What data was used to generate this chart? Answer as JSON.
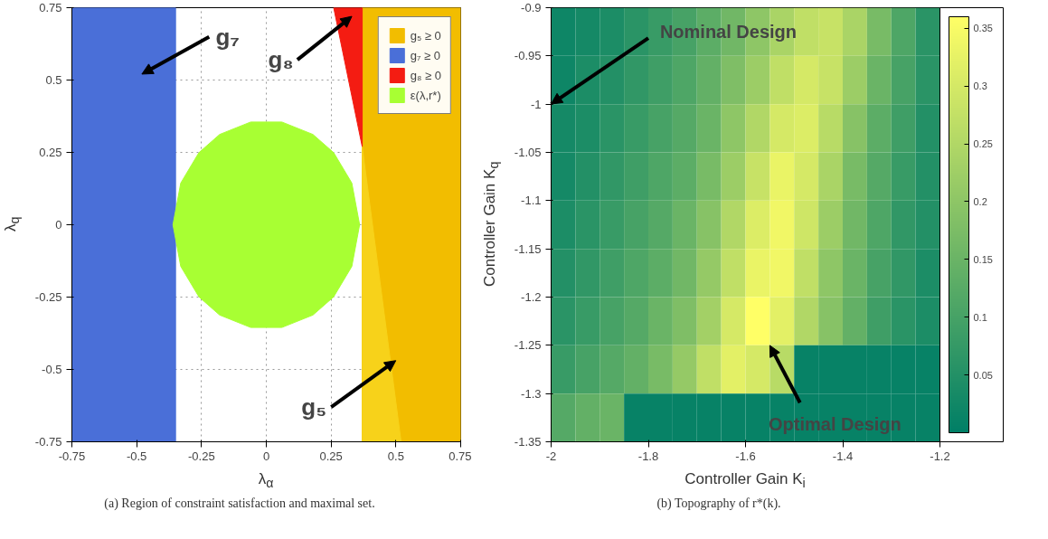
{
  "chart_data": [
    {
      "type": "area",
      "xlabel": "λ$_{α}$",
      "ylabel": "λ$_{q}$",
      "xlim": [
        -0.75,
        0.75
      ],
      "ylim": [
        -0.75,
        0.75
      ],
      "xticks": [
        -0.75,
        -0.5,
        -0.25,
        0,
        0.25,
        0.5,
        0.75
      ],
      "yticks": [
        -0.75,
        -0.5,
        -0.25,
        0,
        0.25,
        0.5,
        0.75
      ],
      "grid": true,
      "legend": "top right",
      "series": [
        {
          "name": "g₅ ≥ 0",
          "color": "#f2bd00",
          "x": [
            0.37,
            0.75,
            0.75,
            0.37
          ],
          "values": [
            -0.75,
            -0.75,
            0.75,
            0.75
          ]
        },
        {
          "color": "#f7d21a",
          "x": [
            0.37,
            0.37,
            0.52
          ],
          "values": [
            0.27,
            -0.75,
            -0.75
          ]
        },
        {
          "name": "g₇ ≥ 0",
          "color": "#4a6fd8",
          "x": [
            -0.75,
            -0.35,
            -0.35,
            -0.75
          ],
          "values": [
            -0.75,
            -0.75,
            0.75,
            0.75
          ]
        },
        {
          "name": "g₈ ≥ 0",
          "color": "#f41c12",
          "x": [
            0.26,
            0.37,
            0.37
          ],
          "values": [
            0.75,
            0.75,
            0.27
          ]
        },
        {
          "name": "ε(λ,r*)",
          "color": "#a8ff33",
          "x": [
            -0.36,
            -0.33,
            -0.26,
            -0.18,
            -0.06,
            0.06,
            0.18,
            0.26,
            0.33,
            0.36,
            0.33,
            0.26,
            0.18,
            0.06,
            -0.06,
            -0.18,
            -0.26,
            -0.33
          ],
          "values": [
            0,
            0.144,
            0.249,
            0.312,
            0.355,
            0.355,
            0.312,
            0.249,
            0.144,
            0,
            -0.144,
            -0.249,
            -0.312,
            -0.355,
            -0.355,
            -0.312,
            -0.249,
            -0.144
          ]
        }
      ],
      "annotations": [
        "g₇",
        "g₈",
        "g₅",
        "(a) Region of constraint satisfaction and maximal set."
      ]
    },
    {
      "type": "heatmap",
      "xlabel": "Controller Gain K$_{i}$",
      "ylabel": "Controller Gain K$_{q}$",
      "xlim": [
        -2,
        -1.2
      ],
      "ylim": [
        -1.35,
        -0.9
      ],
      "xticks": [
        -2,
        -1.8,
        -1.6,
        -1.4,
        -1.2
      ],
      "yticks": [
        -1.35,
        -1.3,
        -1.25,
        -1.2,
        -1.15,
        -1.1,
        -1.05,
        -1,
        -0.95,
        -0.9
      ],
      "clim": [
        0,
        0.36
      ],
      "cticks": [
        0.05,
        0.1,
        0.15,
        0.2,
        0.25,
        0.3,
        0.35
      ],
      "colors": [
        "#007f66",
        "#ffff66"
      ],
      "x": [
        -1.975,
        -1.925,
        -1.875,
        -1.825,
        -1.775,
        -1.725,
        -1.675,
        -1.625,
        -1.575,
        -1.525,
        -1.475,
        -1.425,
        -1.375,
        -1.325,
        -1.275,
        -1.225
      ],
      "y": [
        -0.925,
        -0.975,
        -1.025,
        -1.075,
        -1.125,
        -1.175,
        -1.225,
        -1.275,
        -1.325
      ],
      "cells": [
        [
          0.02,
          0.03,
          0.04,
          0.06,
          0.08,
          0.1,
          0.13,
          0.16,
          0.2,
          0.24,
          0.27,
          0.28,
          0.24,
          0.17,
          0.11,
          0.06
        ],
        [
          0.02,
          0.04,
          0.05,
          0.07,
          0.09,
          0.11,
          0.14,
          0.18,
          0.22,
          0.27,
          0.3,
          0.28,
          0.22,
          0.15,
          0.1,
          0.06
        ],
        [
          0.03,
          0.04,
          0.06,
          0.08,
          0.1,
          0.12,
          0.15,
          0.2,
          0.25,
          0.3,
          0.31,
          0.26,
          0.19,
          0.13,
          0.09,
          0.05
        ],
        [
          0.03,
          0.05,
          0.07,
          0.09,
          0.11,
          0.13,
          0.17,
          0.22,
          0.28,
          0.33,
          0.3,
          0.24,
          0.17,
          0.12,
          0.08,
          0.05
        ],
        [
          0.04,
          0.06,
          0.08,
          0.1,
          0.12,
          0.15,
          0.19,
          0.25,
          0.31,
          0.34,
          0.29,
          0.22,
          0.16,
          0.11,
          0.07,
          0.05
        ],
        [
          0.05,
          0.07,
          0.09,
          0.11,
          0.13,
          0.16,
          0.21,
          0.27,
          0.33,
          0.34,
          0.27,
          0.2,
          0.15,
          0.1,
          0.07,
          0.04
        ],
        [
          0.06,
          0.08,
          0.1,
          0.12,
          0.15,
          0.18,
          0.23,
          0.3,
          0.36,
          0.32,
          0.25,
          0.19,
          0.14,
          0.09,
          0.06,
          0.04
        ],
        [
          0.08,
          0.1,
          0.12,
          0.14,
          0.17,
          0.21,
          0.27,
          0.32,
          0.3,
          0.26,
          0.01,
          0.01,
          0.01,
          0.01,
          0.01,
          0.01
        ],
        [
          0.12,
          0.14,
          0.15,
          0.01,
          0.01,
          0.01,
          0.01,
          0.01,
          0.01,
          0.01,
          0.01,
          0.01,
          0.01,
          0.01,
          0.01,
          0.01
        ]
      ],
      "annotations": [
        "Nominal Design",
        "Optimal Design",
        "(b) Topography of r*(k)."
      ]
    }
  ]
}
